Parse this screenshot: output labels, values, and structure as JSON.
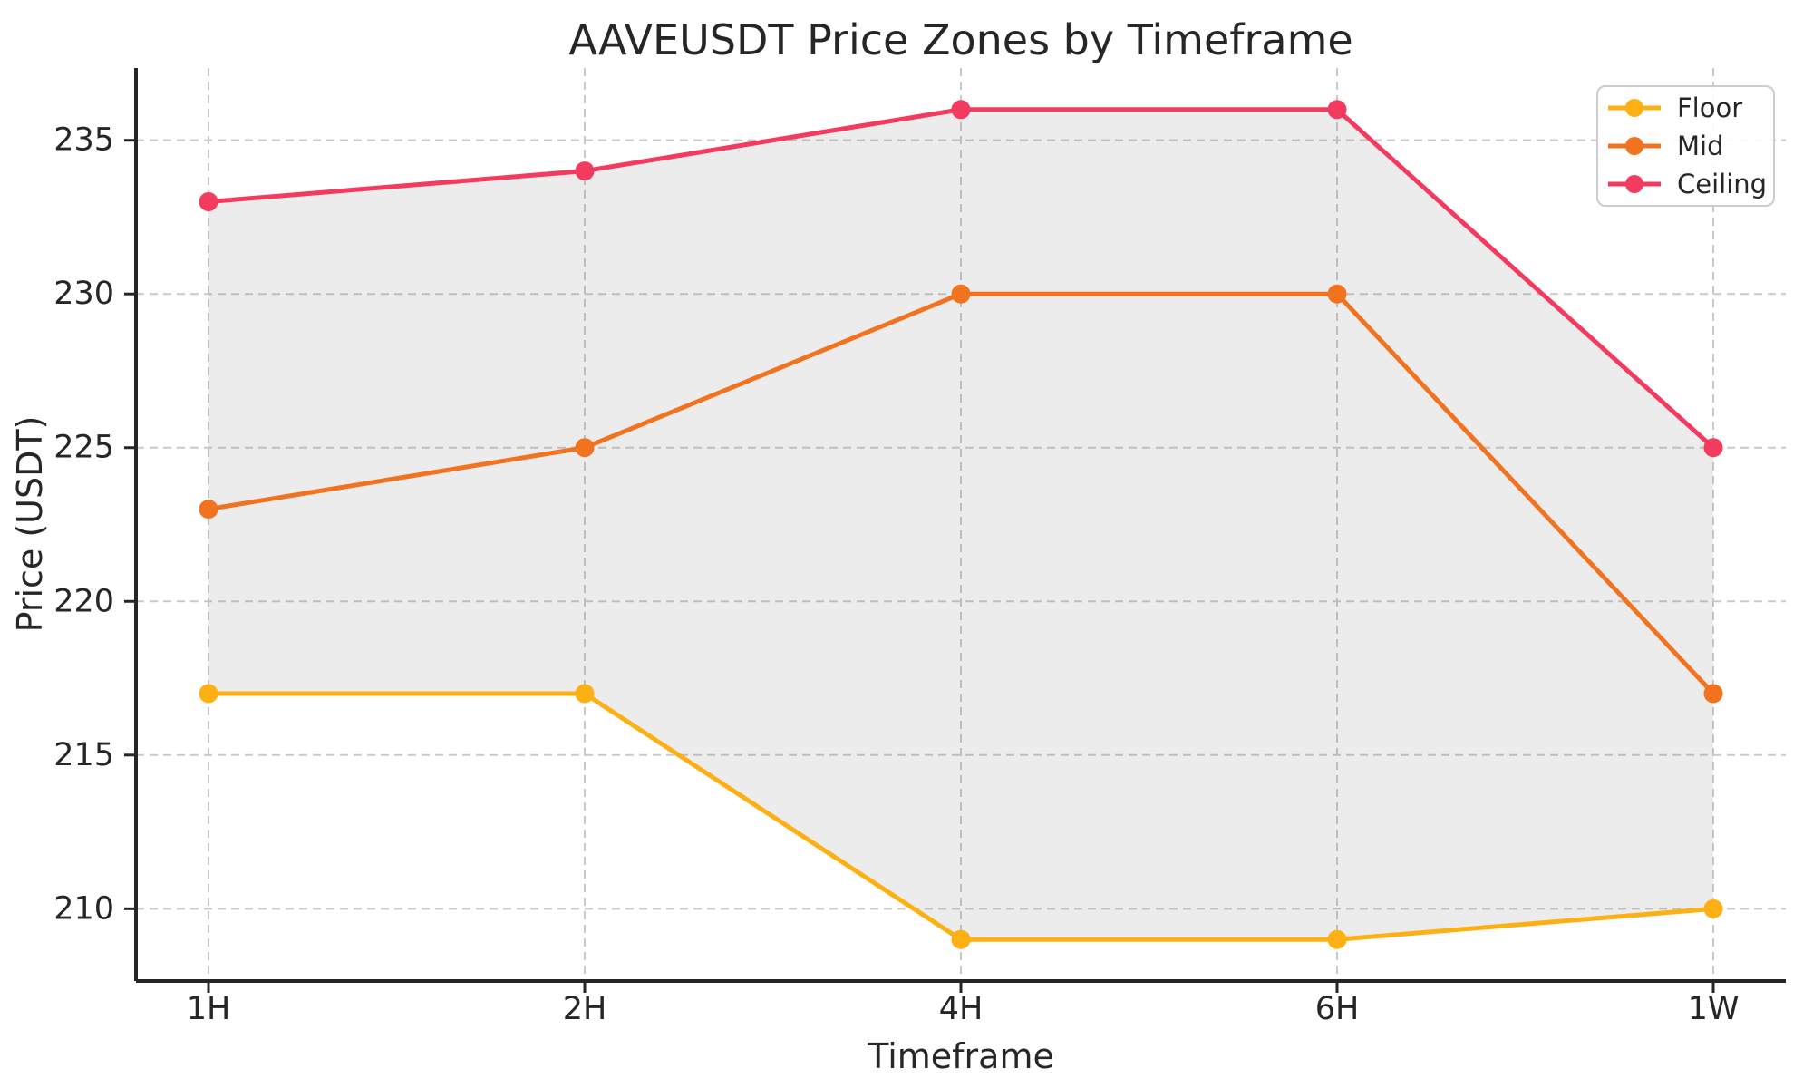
{
  "chart_data": {
    "type": "line",
    "title": "AAVEUSDT Price Zones by Timeframe",
    "xlabel": "Timeframe",
    "ylabel": "Price (USDT)",
    "categories": [
      "1H",
      "2H",
      "4H",
      "6H",
      "1W"
    ],
    "series": [
      {
        "name": "Floor",
        "color": "#FDB013",
        "values": [
          217,
          217,
          209,
          209,
          210
        ]
      },
      {
        "name": "Mid",
        "color": "#F1731F",
        "values": [
          223,
          225,
          230,
          230,
          217
        ]
      },
      {
        "name": "Ceiling",
        "color": "#F23B5E",
        "values": [
          233,
          234,
          236,
          236,
          225
        ]
      }
    ],
    "legend": {
      "position": "upper right",
      "entries": [
        "Floor",
        "Mid",
        "Ceiling"
      ]
    },
    "yticks": [
      210,
      215,
      220,
      225,
      230,
      235
    ],
    "ylim": [
      207.65,
      237.35
    ],
    "grid": true,
    "grid_style": "dashed",
    "fill_between": {
      "lower": "Floor",
      "upper": "Ceiling",
      "color": "#808080",
      "opacity": 0.15
    },
    "colors": {
      "axis": "#262626",
      "tick_label": "#262626",
      "grid": "#c9c9c9",
      "legend_border": "#cccccc",
      "background": "#ffffff"
    }
  }
}
